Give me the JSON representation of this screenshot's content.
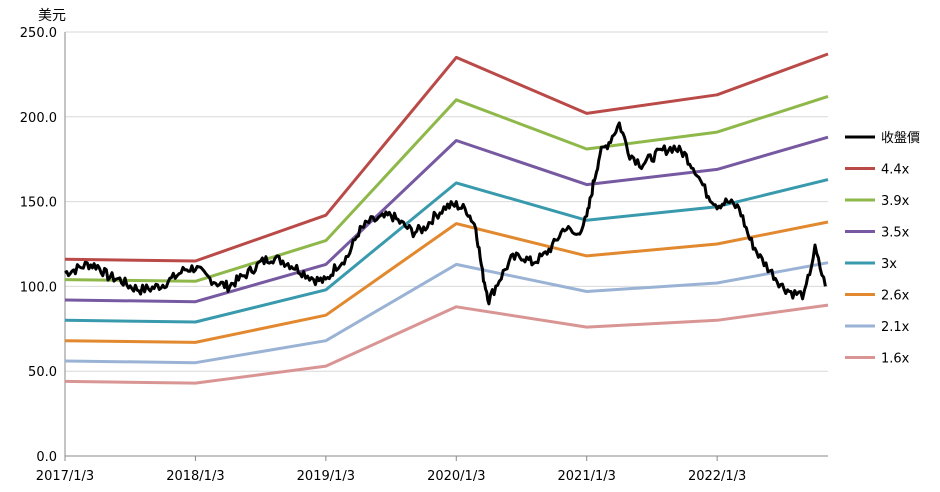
{
  "chart_data": {
    "type": "line",
    "ylabel": "美元",
    "ylim": [
      0,
      250
    ],
    "yticks": [
      "0.0",
      "50.0",
      "100.0",
      "150.0",
      "200.0",
      "250.0"
    ],
    "xticks": [
      "2017/1/3",
      "2018/1/3",
      "2019/1/3",
      "2020/1/3",
      "2021/1/3",
      "2022/1/3"
    ],
    "xlim": [
      2017.0,
      2022.85
    ],
    "grid": "horizontal",
    "legend_position": "right",
    "series": [
      {
        "name": "收盤價",
        "color": "#000000",
        "x": [
          2017.0,
          2017.08,
          2017.17,
          2017.25,
          2017.33,
          2017.42,
          2017.5,
          2017.58,
          2017.67,
          2017.75,
          2017.83,
          2017.92,
          2018.0,
          2018.08,
          2018.17,
          2018.25,
          2018.33,
          2018.42,
          2018.5,
          2018.58,
          2018.67,
          2018.75,
          2018.83,
          2018.92,
          2019.0,
          2019.08,
          2019.17,
          2019.25,
          2019.33,
          2019.42,
          2019.5,
          2019.58,
          2019.67,
          2019.75,
          2019.83,
          2019.92,
          2020.0,
          2020.08,
          2020.15,
          2020.2,
          2020.25,
          2020.33,
          2020.42,
          2020.5,
          2020.58,
          2020.67,
          2020.75,
          2020.83,
          2020.92,
          2021.0,
          2021.05,
          2021.1,
          2021.17,
          2021.25,
          2021.33,
          2021.42,
          2021.5,
          2021.58,
          2021.67,
          2021.75,
          2021.83,
          2021.92,
          2022.0,
          2022.08,
          2022.17,
          2022.25,
          2022.33,
          2022.42,
          2022.5,
          2022.58,
          2022.67,
          2022.75,
          2022.83
        ],
        "y": [
          108,
          110,
          113,
          112,
          106,
          104,
          100,
          98,
          99,
          101,
          105,
          110,
          111,
          106,
          102,
          100,
          104,
          109,
          114,
          117,
          115,
          112,
          108,
          104,
          103,
          112,
          118,
          132,
          138,
          140,
          142,
          137,
          132,
          134,
          141,
          147,
          148,
          145,
          135,
          108,
          92,
          104,
          116,
          118,
          114,
          118,
          125,
          135,
          130,
          140,
          160,
          178,
          185,
          196,
          178,
          172,
          176,
          180,
          182,
          178,
          169,
          155,
          148,
          150,
          146,
          128,
          117,
          108,
          100,
          96,
          95,
          122,
          100
        ]
      },
      {
        "name": "4.4x",
        "color": "#b94a48",
        "x": [
          2017.0,
          2018.0,
          2019.0,
          2020.0,
          2021.0,
          2022.0,
          2022.85
        ],
        "y": [
          116,
          115,
          142,
          235,
          202,
          213,
          237
        ]
      },
      {
        "name": "3.9x",
        "color": "#8fb84a",
        "x": [
          2017.0,
          2018.0,
          2019.0,
          2020.0,
          2021.0,
          2022.0,
          2022.85
        ],
        "y": [
          104,
          103,
          127,
          210,
          181,
          191,
          212
        ]
      },
      {
        "name": "3.5x",
        "color": "#7659a0",
        "x": [
          2017.0,
          2018.0,
          2019.0,
          2020.0,
          2021.0,
          2022.0,
          2022.85
        ],
        "y": [
          92,
          91,
          113,
          186,
          160,
          169,
          188
        ]
      },
      {
        "name": "3x",
        "color": "#3a9aad",
        "x": [
          2017.0,
          2018.0,
          2019.0,
          2020.0,
          2021.0,
          2022.0,
          2022.85
        ],
        "y": [
          80,
          79,
          98,
          161,
          139,
          147,
          163
        ]
      },
      {
        "name": "2.6x",
        "color": "#e2882e",
        "x": [
          2017.0,
          2018.0,
          2019.0,
          2020.0,
          2021.0,
          2022.0,
          2022.85
        ],
        "y": [
          68,
          67,
          83,
          137,
          118,
          125,
          138
        ]
      },
      {
        "name": "2.1x",
        "color": "#9ab3d5",
        "x": [
          2017.0,
          2018.0,
          2019.0,
          2020.0,
          2021.0,
          2022.0,
          2022.85
        ],
        "y": [
          56,
          55,
          68,
          113,
          97,
          102,
          114
        ]
      },
      {
        "name": "1.6x",
        "color": "#d99594",
        "x": [
          2017.0,
          2018.0,
          2019.0,
          2020.0,
          2021.0,
          2022.0,
          2022.85
        ],
        "y": [
          44,
          43,
          53,
          88,
          76,
          80,
          89
        ]
      }
    ]
  }
}
